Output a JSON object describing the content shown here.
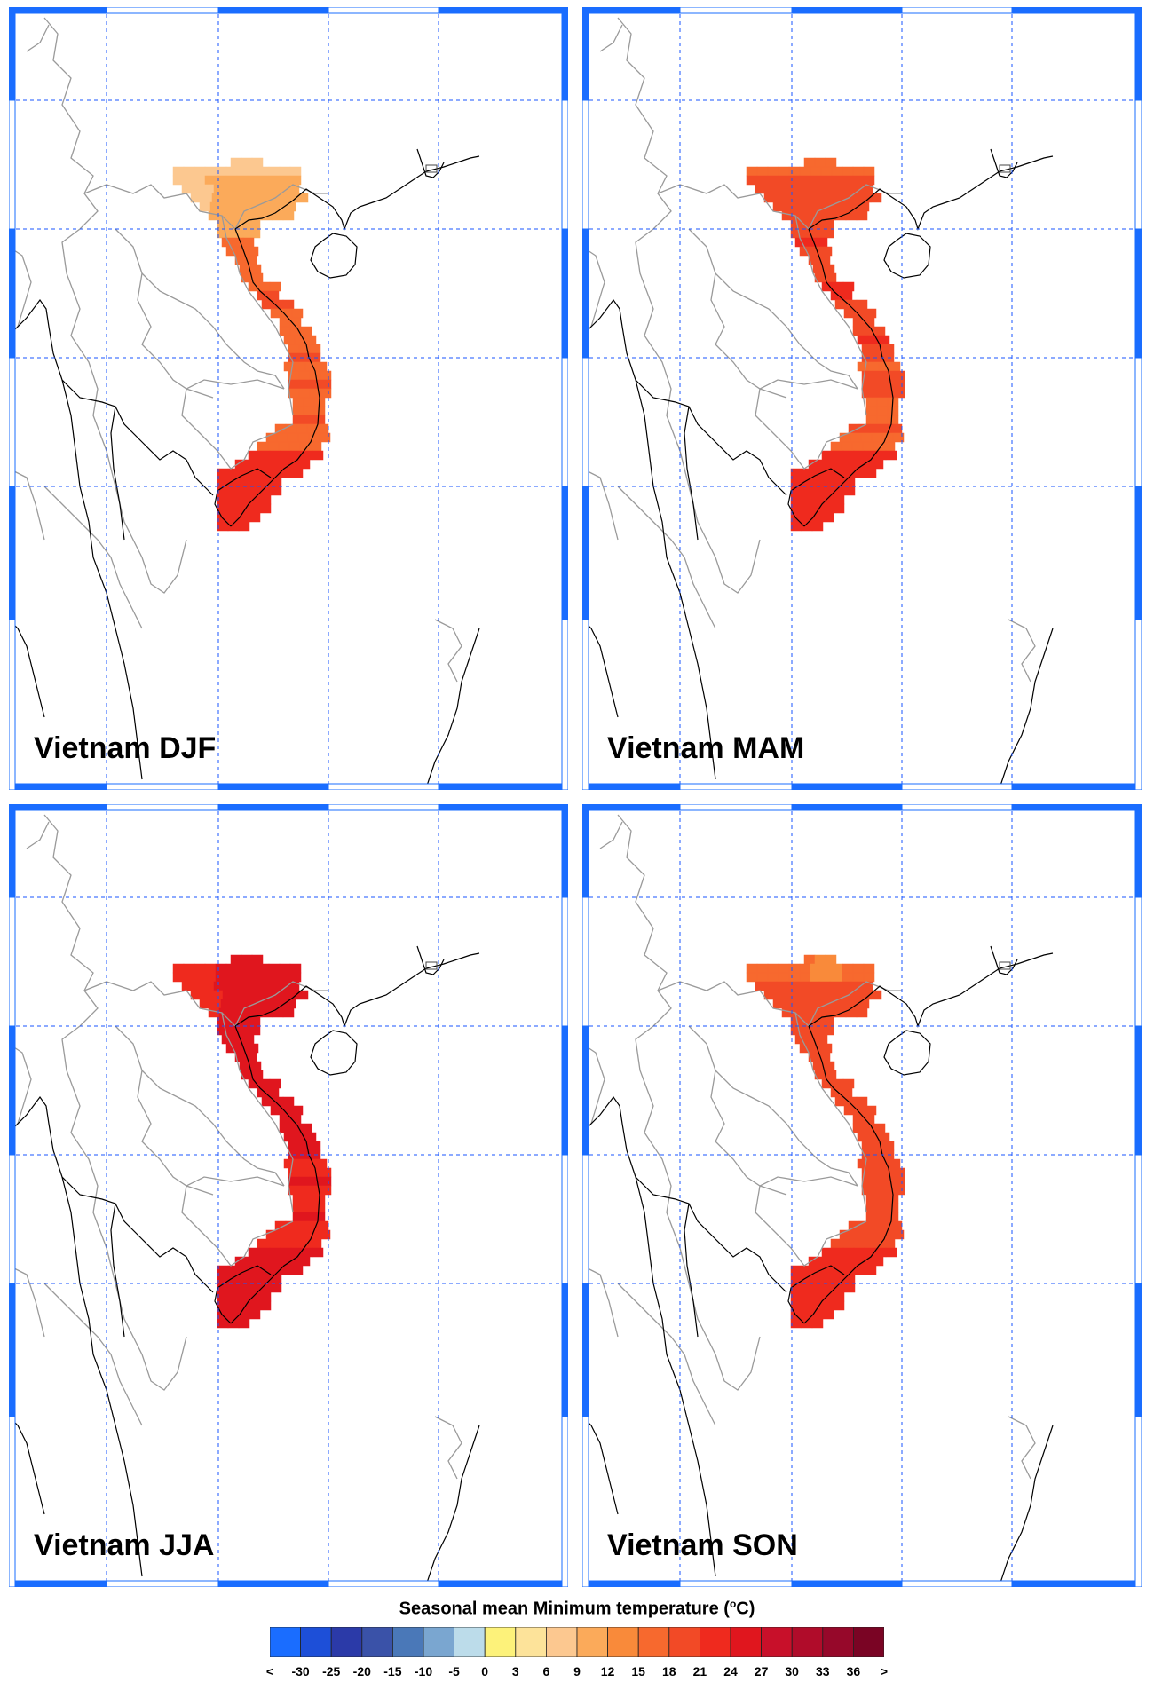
{
  "panels": [
    {
      "label": "Vietnam DJF",
      "season": "DJF"
    },
    {
      "label": "Vietnam MAM",
      "season": "MAM"
    },
    {
      "label": "Vietnam JJA",
      "season": "JJA"
    },
    {
      "label": "Vietnam SON",
      "season": "SON"
    }
  ],
  "legend": {
    "title_main": "Seasonal mean Minimum temperature (",
    "title_sup": "o",
    "title_end": "C)",
    "tick_labels": [
      "<",
      "-30",
      "-25",
      "-20",
      "-15",
      "-10",
      "-5",
      "0",
      "3",
      "6",
      "9",
      "12",
      "15",
      "18",
      "21",
      "24",
      "27",
      "30",
      "33",
      "36",
      ">"
    ],
    "colors": [
      "#1a6dff",
      "#1d4fd8",
      "#2b3aa8",
      "#3a52a8",
      "#4a78b8",
      "#7aa6d0",
      "#bcdcea",
      "#fdf27a",
      "#fde39a",
      "#fcc890",
      "#fbaa5a",
      "#f98a3a",
      "#f7692e",
      "#f24a26",
      "#ef2a1e",
      "#e0161e",
      "#c8102a",
      "#b00c2a",
      "#96082a",
      "#7a0424"
    ]
  },
  "colors": {
    "map_border": "#1a6dff",
    "gridline": "#1a55ff",
    "country_border": "#9a9a9a",
    "coastline": "#000000"
  }
}
